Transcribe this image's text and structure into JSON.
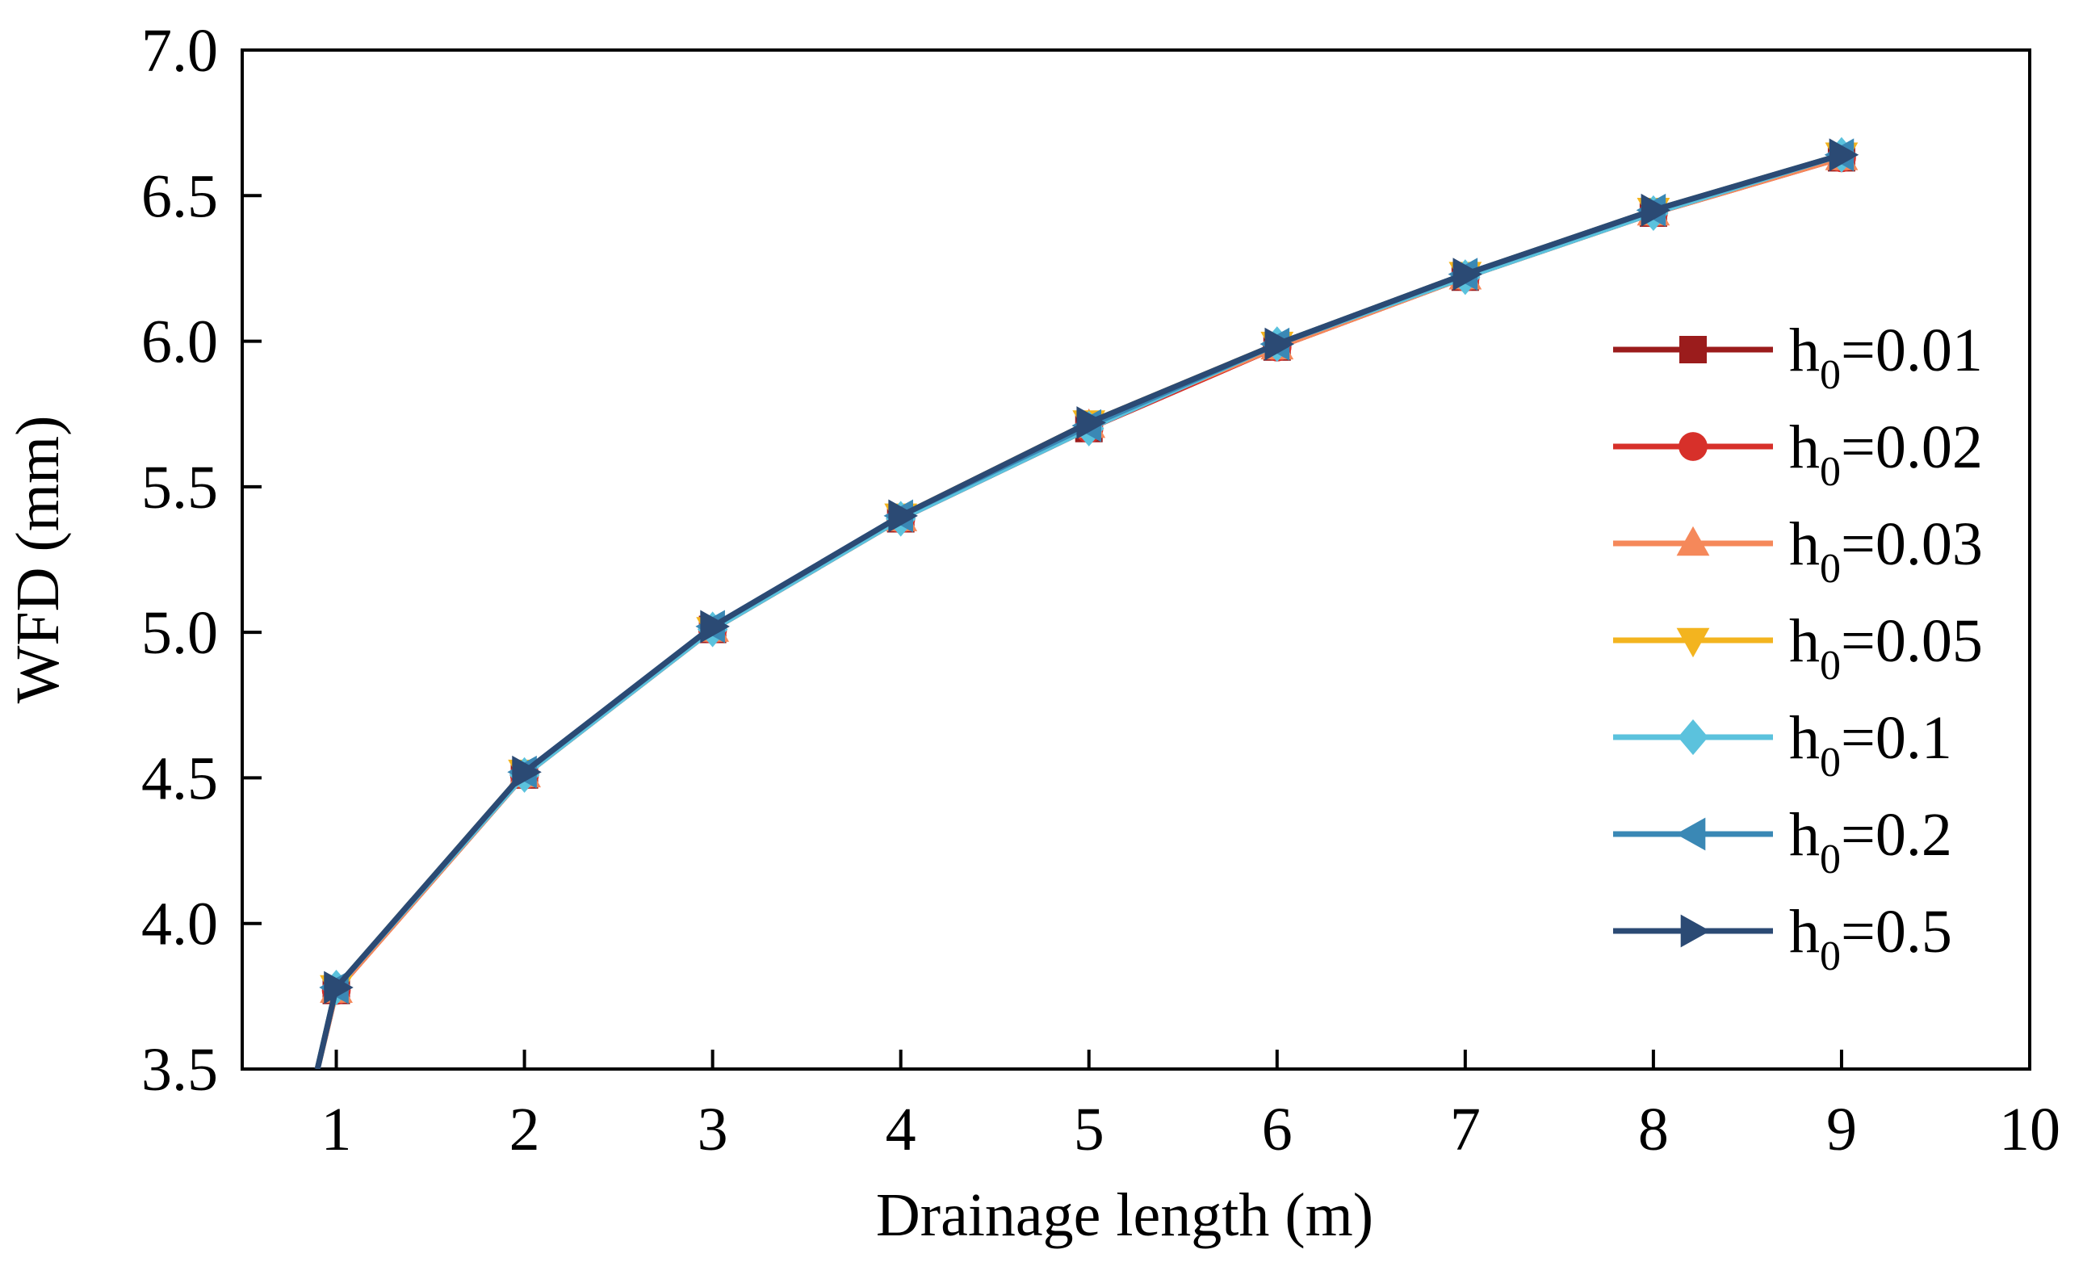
{
  "chart_data": {
    "type": "line",
    "title": "",
    "xlabel": "Drainage length (m)",
    "ylabel": "WFD (mm)",
    "xlim": [
      0.5,
      10
    ],
    "ylim": [
      3.5,
      7.0
    ],
    "xticks": [
      "1",
      "2",
      "3",
      "4",
      "5",
      "6",
      "7",
      "8",
      "9",
      "10"
    ],
    "yticks": [
      "3.5",
      "4.0",
      "4.5",
      "5.0",
      "5.5",
      "6.0",
      "6.5",
      "7.0"
    ],
    "x": [
      0.9,
      1,
      2,
      3,
      4,
      5,
      6,
      7,
      8,
      9
    ],
    "legend_position": "right",
    "series": [
      {
        "name_base": "h",
        "name_sub": "0",
        "name_value": "=0.01",
        "color": "#9b1c1c",
        "marker": "square",
        "values": [
          3.5,
          3.77,
          4.51,
          5.01,
          5.39,
          5.7,
          5.98,
          6.22,
          6.44,
          6.63
        ]
      },
      {
        "name_base": "h",
        "name_sub": "0",
        "name_value": "=0.02",
        "color": "#d7302a",
        "marker": "circle",
        "values": [
          3.5,
          3.77,
          4.51,
          5.01,
          5.39,
          5.7,
          5.98,
          6.22,
          6.44,
          6.63
        ]
      },
      {
        "name_base": "h",
        "name_sub": "0",
        "name_value": "=0.03",
        "color": "#f5885a",
        "marker": "triangle-up",
        "values": [
          3.5,
          3.77,
          4.51,
          5.01,
          5.39,
          5.71,
          5.98,
          6.22,
          6.44,
          6.63
        ]
      },
      {
        "name_base": "h",
        "name_sub": "0",
        "name_value": "=0.05",
        "color": "#f3b41f",
        "marker": "triangle-down",
        "values": [
          3.5,
          3.78,
          4.52,
          5.01,
          5.4,
          5.72,
          5.99,
          6.23,
          6.45,
          6.64
        ]
      },
      {
        "name_base": "h",
        "name_sub": "0",
        "name_value": "=0.1",
        "color": "#5bc2dd",
        "marker": "diamond",
        "values": [
          3.5,
          3.78,
          4.51,
          5.01,
          5.39,
          5.7,
          5.99,
          6.22,
          6.44,
          6.64
        ]
      },
      {
        "name_base": "h",
        "name_sub": "0",
        "name_value": "=0.2",
        "color": "#3a88b5",
        "marker": "triangle-left",
        "values": [
          3.5,
          3.78,
          4.52,
          5.02,
          5.4,
          5.71,
          5.99,
          6.23,
          6.45,
          6.64
        ]
      },
      {
        "name_base": "h",
        "name_sub": "0",
        "name_value": "=0.5",
        "color": "#2b4a74",
        "marker": "triangle-right",
        "values": [
          3.5,
          3.78,
          4.52,
          5.02,
          5.4,
          5.72,
          5.99,
          6.23,
          6.45,
          6.64
        ]
      }
    ]
  }
}
